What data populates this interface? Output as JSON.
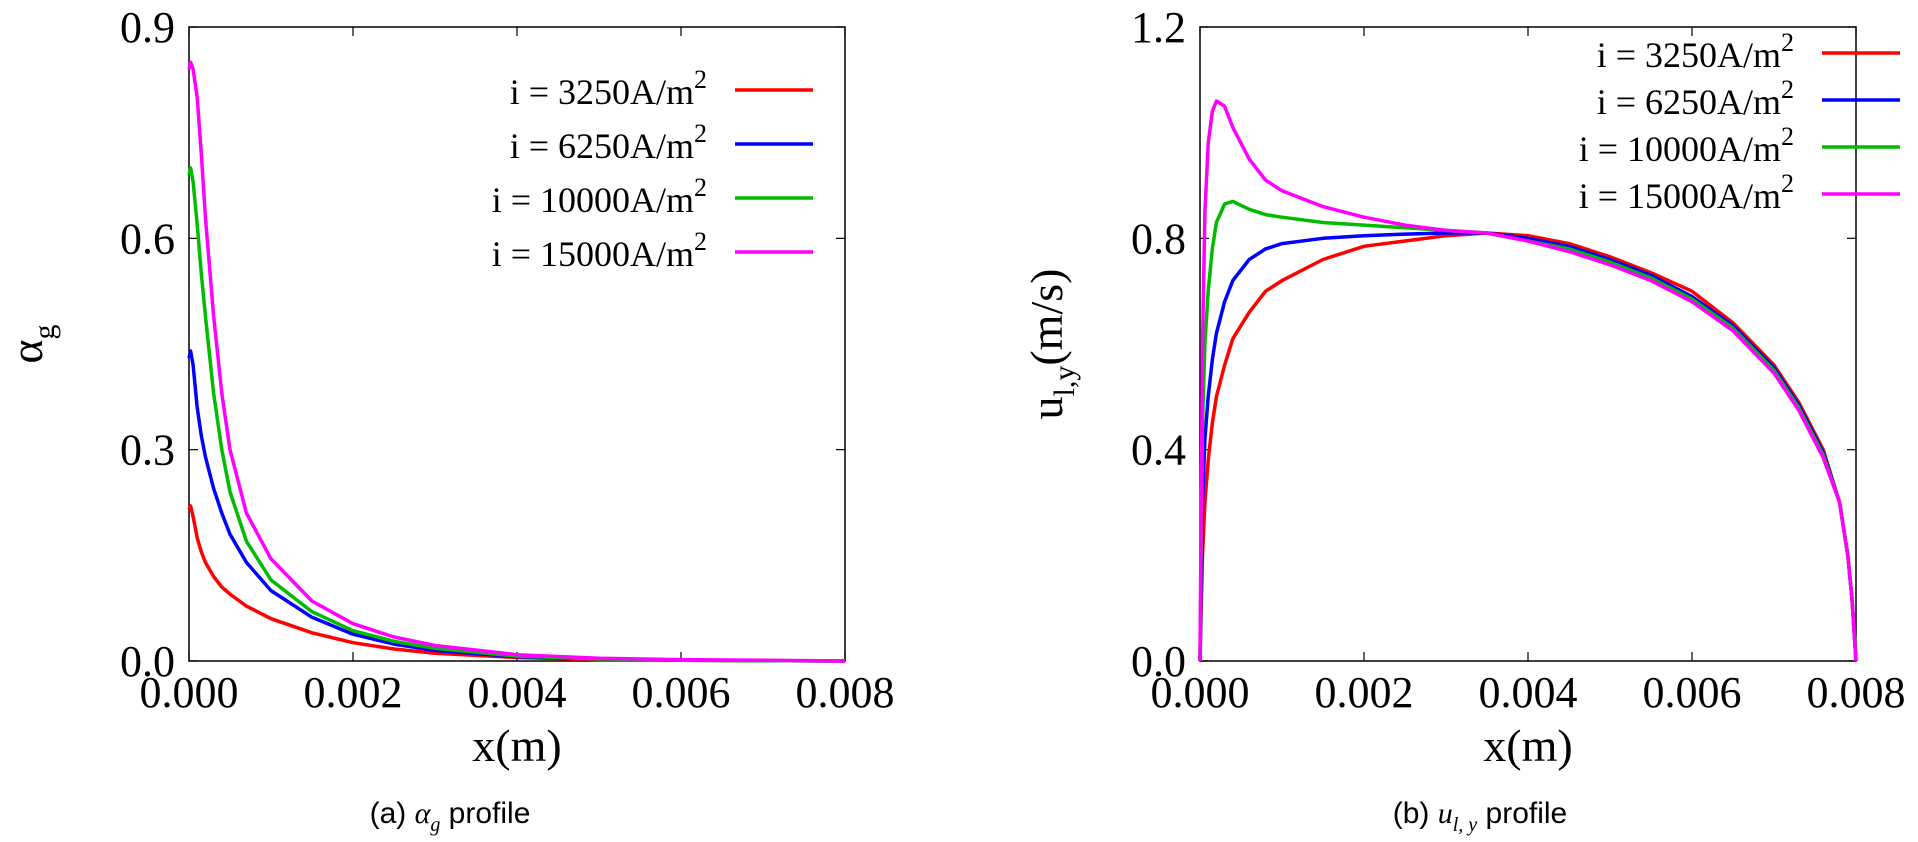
{
  "chart_data": [
    {
      "type": "line",
      "ylabel_main": "α",
      "ylabel_sub": "g",
      "xlabel": "x(m)",
      "xlim": [
        0,
        0.008
      ],
      "ylim": [
        0,
        0.9
      ],
      "xticks": [
        "0.000",
        "0.002",
        "0.004",
        "0.006",
        "0.008"
      ],
      "yticks": [
        "0.0",
        "0.3",
        "0.6",
        "0.9"
      ],
      "legend": "top-right",
      "caption_prefix": "(a) ",
      "caption_math_main": "α",
      "caption_math_sub": "g",
      "caption_suffix": " profile",
      "series": [
        {
          "name": "i = 3250A/m",
          "sup": "2",
          "color": "#ff0000",
          "x": [
            0,
            2e-05,
            5e-05,
            0.0001,
            0.00015,
            0.0002,
            0.0003,
            0.0004,
            0.0005,
            0.0007,
            0.001,
            0.0015,
            0.002,
            0.0025,
            0.003,
            0.004,
            0.005,
            0.006,
            0.008
          ],
          "y": [
            0.215,
            0.22,
            0.205,
            0.175,
            0.155,
            0.14,
            0.12,
            0.105,
            0.095,
            0.078,
            0.06,
            0.04,
            0.026,
            0.017,
            0.011,
            0.005,
            0.002,
            0.001,
            0.0
          ]
        },
        {
          "name": "i = 6250A/m",
          "sup": "2",
          "color": "#0000ff",
          "x": [
            0,
            2e-05,
            5e-05,
            0.0001,
            0.00015,
            0.0002,
            0.0003,
            0.0004,
            0.0005,
            0.0007,
            0.001,
            0.0015,
            0.002,
            0.0025,
            0.003,
            0.004,
            0.005,
            0.006,
            0.008
          ],
          "y": [
            0.43,
            0.44,
            0.42,
            0.36,
            0.32,
            0.29,
            0.245,
            0.21,
            0.18,
            0.14,
            0.1,
            0.062,
            0.038,
            0.024,
            0.015,
            0.006,
            0.003,
            0.001,
            0.0
          ]
        },
        {
          "name": "i = 10000A/m",
          "sup": "2",
          "color": "#00bb00",
          "x": [
            0,
            2e-05,
            5e-05,
            0.0001,
            0.00015,
            0.0002,
            0.0003,
            0.0004,
            0.0005,
            0.0007,
            0.001,
            0.0015,
            0.002,
            0.0025,
            0.003,
            0.004,
            0.005,
            0.006,
            0.008
          ],
          "y": [
            0.69,
            0.7,
            0.68,
            0.62,
            0.55,
            0.49,
            0.38,
            0.3,
            0.24,
            0.17,
            0.115,
            0.07,
            0.043,
            0.028,
            0.018,
            0.007,
            0.003,
            0.001,
            0.0
          ]
        },
        {
          "name": "i = 15000A/m",
          "sup": "2",
          "color": "#ff00ff",
          "x": [
            0,
            2e-05,
            5e-05,
            0.0001,
            0.00015,
            0.0002,
            0.0003,
            0.0004,
            0.0005,
            0.0007,
            0.001,
            0.0015,
            0.002,
            0.0025,
            0.003,
            0.004,
            0.005,
            0.006,
            0.008
          ],
          "y": [
            0.84,
            0.85,
            0.84,
            0.8,
            0.72,
            0.63,
            0.49,
            0.38,
            0.3,
            0.21,
            0.145,
            0.085,
            0.053,
            0.034,
            0.022,
            0.009,
            0.004,
            0.002,
            0.0
          ]
        }
      ]
    },
    {
      "type": "line",
      "ylabel_main": "u",
      "ylabel_sub": "l,y",
      "ylabel_rest": "(m/s)",
      "xlabel": "x(m)",
      "xlim": [
        0,
        0.008
      ],
      "ylim": [
        0,
        1.2
      ],
      "xticks": [
        "0.000",
        "0.002",
        "0.004",
        "0.006",
        "0.008"
      ],
      "yticks": [
        "0.0",
        "0.4",
        "0.8",
        "1.2"
      ],
      "legend": "top-right",
      "caption_prefix": "(b) ",
      "caption_math_main": "u",
      "caption_math_sub": "l, y",
      "caption_suffix": " profile",
      "series": [
        {
          "name": "i = 3250A/m",
          "sup": "2",
          "color": "#ff0000",
          "x": [
            0,
            3e-05,
            6e-05,
            0.0001,
            0.00015,
            0.0002,
            0.0003,
            0.0004,
            0.0006,
            0.0008,
            0.001,
            0.0015,
            0.002,
            0.0025,
            0.003,
            0.0035,
            0.004,
            0.0045,
            0.005,
            0.0055,
            0.006,
            0.0065,
            0.007,
            0.0073,
            0.0076,
            0.0078,
            0.0079,
            0.00795,
            0.008
          ],
          "y": [
            0,
            0.2,
            0.3,
            0.38,
            0.45,
            0.5,
            0.56,
            0.61,
            0.66,
            0.7,
            0.72,
            0.76,
            0.785,
            0.795,
            0.805,
            0.81,
            0.805,
            0.79,
            0.765,
            0.735,
            0.7,
            0.64,
            0.56,
            0.49,
            0.4,
            0.3,
            0.2,
            0.12,
            0.0
          ]
        },
        {
          "name": "i = 6250A/m",
          "sup": "2",
          "color": "#0000ff",
          "x": [
            0,
            3e-05,
            6e-05,
            0.0001,
            0.00015,
            0.0002,
            0.0003,
            0.0004,
            0.0006,
            0.0008,
            0.001,
            0.0015,
            0.002,
            0.0025,
            0.003,
            0.0035,
            0.004,
            0.0045,
            0.005,
            0.0055,
            0.006,
            0.0065,
            0.007,
            0.0073,
            0.0076,
            0.0078,
            0.0079,
            0.00795,
            0.008
          ],
          "y": [
            0,
            0.3,
            0.42,
            0.5,
            0.57,
            0.62,
            0.68,
            0.72,
            0.76,
            0.78,
            0.79,
            0.8,
            0.805,
            0.808,
            0.81,
            0.81,
            0.8,
            0.785,
            0.76,
            0.73,
            0.69,
            0.635,
            0.555,
            0.485,
            0.395,
            0.3,
            0.2,
            0.12,
            0.0
          ]
        },
        {
          "name": "i = 10000A/m",
          "sup": "2",
          "color": "#00bb00",
          "x": [
            0,
            3e-05,
            6e-05,
            0.0001,
            0.00015,
            0.0002,
            0.0003,
            0.0004,
            0.0006,
            0.0008,
            0.001,
            0.0015,
            0.002,
            0.0025,
            0.003,
            0.0035,
            0.004,
            0.0045,
            0.005,
            0.0055,
            0.006,
            0.0065,
            0.007,
            0.0073,
            0.0076,
            0.0078,
            0.0079,
            0.00795,
            0.008
          ],
          "y": [
            0,
            0.45,
            0.6,
            0.7,
            0.78,
            0.83,
            0.865,
            0.87,
            0.855,
            0.845,
            0.84,
            0.83,
            0.825,
            0.82,
            0.815,
            0.81,
            0.795,
            0.78,
            0.755,
            0.725,
            0.685,
            0.63,
            0.55,
            0.48,
            0.39,
            0.3,
            0.2,
            0.12,
            0.0
          ]
        },
        {
          "name": "i = 15000A/m",
          "sup": "2",
          "color": "#ff00ff",
          "x": [
            0,
            3e-05,
            6e-05,
            0.0001,
            0.00015,
            0.0002,
            0.0003,
            0.0004,
            0.0006,
            0.0008,
            0.001,
            0.0015,
            0.002,
            0.0025,
            0.003,
            0.0035,
            0.004,
            0.0045,
            0.005,
            0.0055,
            0.006,
            0.0065,
            0.007,
            0.0073,
            0.0076,
            0.0078,
            0.0079,
            0.00795,
            0.008
          ],
          "y": [
            0,
            0.6,
            0.85,
            0.98,
            1.04,
            1.06,
            1.05,
            1.01,
            0.95,
            0.91,
            0.89,
            0.86,
            0.84,
            0.825,
            0.815,
            0.81,
            0.795,
            0.775,
            0.75,
            0.72,
            0.68,
            0.625,
            0.545,
            0.475,
            0.385,
            0.3,
            0.2,
            0.12,
            0.0
          ]
        }
      ]
    }
  ]
}
